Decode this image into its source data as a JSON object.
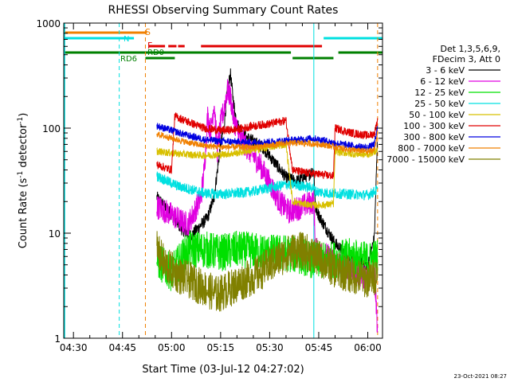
{
  "chart_data": {
    "type": "line",
    "title": "RHESSI Observing Summary Count Rates",
    "xlabel": "Start Time (03-Jul-12 04:27:02)",
    "ylabel_main": "Count Rate (s",
    "ylabel_sup1": "-1",
    "ylabel_mid": " detector",
    "ylabel_sup2": "-1",
    "ylabel_end": ")",
    "yscale": "log",
    "ylim": [
      1,
      1000
    ],
    "xlim": [
      "04:27:02",
      "06:04:30"
    ],
    "x_tick_labels": [
      "04:30",
      "04:45",
      "05:00",
      "05:15",
      "05:30",
      "05:45",
      "06:00"
    ],
    "y_tick_labels": [
      "1",
      "10",
      "100",
      "1000"
    ],
    "legend": {
      "placement": "right",
      "header": [
        "Det 1,3,5,6,9,",
        "FDecim 3, Att 0"
      ],
      "entries": [
        {
          "label": "3 - 6 keV",
          "color": "#000000"
        },
        {
          "label": "6 - 12 keV",
          "color": "#e000e0"
        },
        {
          "label": "12 - 25 keV",
          "color": "#00e000"
        },
        {
          "label": "25 - 50 keV",
          "color": "#00e0e0"
        },
        {
          "label": "50 - 100 keV",
          "color": "#d8c000"
        },
        {
          "label": "100 - 300 keV",
          "color": "#e00000"
        },
        {
          "label": "300 - 800 keV",
          "color": "#0000e0"
        },
        {
          "label": "800 - 7000 keV",
          "color": "#f08000"
        },
        {
          "label": "7000 - 15000 keV",
          "color": "#808000"
        }
      ]
    },
    "flag_labels": {
      "S": "S",
      "N": "N",
      "F": "F",
      "RD0": "RD0",
      "RD6": "RD6"
    },
    "flag_colors": {
      "S": "#f08000",
      "N": "#00e0e0",
      "F": "#e00000",
      "RD": "#008000"
    },
    "flags": {
      "S": [
        [
          "04:27:02",
          "04:52:30"
        ]
      ],
      "N": [
        [
          "04:27:02",
          "04:48:30"
        ],
        [
          "05:46:30",
          "06:04:30"
        ]
      ],
      "F": [
        [
          "04:53:00",
          "04:58:00"
        ],
        [
          "04:59:00",
          "05:01:30"
        ],
        [
          "05:02:00",
          "05:04:00"
        ],
        [
          "05:09:00",
          "05:46:00"
        ]
      ],
      "RD0": [
        [
          "04:27:02",
          "05:36:30"
        ],
        [
          "05:51:00",
          "06:04:30"
        ]
      ],
      "RD6": [
        [
          "04:52:00",
          "05:01:00"
        ],
        [
          "05:37:00",
          "05:49:30"
        ]
      ]
    },
    "vertical_lines": [
      {
        "time": "04:44:00",
        "color": "#00e0e0",
        "style": "dashed"
      },
      {
        "time": "04:52:00",
        "color": "#f08000",
        "style": "dashed"
      },
      {
        "time": "05:43:30",
        "color": "#00e0e0",
        "style": "solid"
      },
      {
        "time": "06:03:00",
        "color": "#f08000",
        "style": "dashed"
      }
    ],
    "data_start": "04:55:30",
    "data_end": "06:03:00",
    "series": [
      {
        "name": "3 - 6 keV",
        "color": "#000000",
        "noise": 0.06,
        "points": [
          [
            "04:55:30",
            22
          ],
          [
            "05:00:00",
            15
          ],
          [
            "05:03:00",
            11
          ],
          [
            "05:06:00",
            9.5
          ],
          [
            "05:09:00",
            12
          ],
          [
            "05:11:00",
            14
          ],
          [
            "05:13:00",
            22
          ],
          [
            "05:15:00",
            70
          ],
          [
            "05:16:00",
            100
          ],
          [
            "05:17:00",
            220
          ],
          [
            "05:18:00",
            330
          ],
          [
            "05:19:00",
            170
          ],
          [
            "05:20:00",
            110
          ],
          [
            "05:22:00",
            85
          ],
          [
            "05:25:00",
            75
          ],
          [
            "05:28:00",
            65
          ],
          [
            "05:32:00",
            45
          ],
          [
            "05:35:00",
            34
          ],
          [
            "05:38:00",
            31
          ],
          [
            "05:42:00",
            36
          ],
          [
            "05:43:30",
            40
          ],
          [
            "05:44:00",
            17
          ],
          [
            "05:46:00",
            13
          ],
          [
            "05:50:00",
            8
          ],
          [
            "05:55:00",
            5.5
          ],
          [
            "06:00:00",
            5
          ],
          [
            "06:02:00",
            9
          ],
          [
            "06:03:00",
            85
          ]
        ]
      },
      {
        "name": "6 - 12 keV",
        "color": "#e000e0",
        "noise": 0.12,
        "points": [
          [
            "04:55:30",
            18
          ],
          [
            "05:00:00",
            15
          ],
          [
            "05:03:00",
            13
          ],
          [
            "05:05:00",
            12
          ],
          [
            "05:07:00",
            16
          ],
          [
            "05:09:00",
            22
          ],
          [
            "05:10:00",
            40
          ],
          [
            "05:11:00",
            130
          ],
          [
            "05:12:00",
            90
          ],
          [
            "05:13:00",
            180
          ],
          [
            "05:14:00",
            60
          ],
          [
            "05:15:00",
            110
          ],
          [
            "05:16:00",
            150
          ],
          [
            "05:17:00",
            230
          ],
          [
            "05:18:00",
            200
          ],
          [
            "05:19:00",
            120
          ],
          [
            "05:21:00",
            80
          ],
          [
            "05:24:00",
            60
          ],
          [
            "05:27:00",
            45
          ],
          [
            "05:30:00",
            30
          ],
          [
            "05:33:00",
            20
          ],
          [
            "05:36:00",
            16
          ],
          [
            "05:40:00",
            18
          ],
          [
            "05:43:30",
            20
          ],
          [
            "05:44:00",
            7
          ],
          [
            "05:48:00",
            6
          ],
          [
            "05:52:00",
            5
          ],
          [
            "05:56:00",
            4.2
          ],
          [
            "06:00:00",
            3.8
          ],
          [
            "06:02:00",
            4.5
          ],
          [
            "06:03:00",
            1.2
          ]
        ]
      },
      {
        "name": "12 - 25 keV",
        "color": "#00e000",
        "noise": 0.18,
        "points": [
          [
            "04:55:30",
            5.5
          ],
          [
            "05:00:00",
            4.2
          ],
          [
            "05:05:00",
            7
          ],
          [
            "05:10:00",
            7
          ],
          [
            "05:15:00",
            6.5
          ],
          [
            "05:20:00",
            7
          ],
          [
            "05:25:00",
            6.8
          ],
          [
            "05:30:00",
            6.5
          ],
          [
            "05:35:00",
            6.5
          ],
          [
            "05:40:00",
            6
          ],
          [
            "05:43:30",
            5.5
          ],
          [
            "05:48:00",
            5.5
          ],
          [
            "05:55:00",
            6
          ],
          [
            "06:00:00",
            5.5
          ],
          [
            "06:03:00",
            6
          ]
        ]
      },
      {
        "name": "25 - 50 keV",
        "color": "#00e0e0",
        "noise": 0.05,
        "points": [
          [
            "04:55:30",
            35
          ],
          [
            "04:58:00",
            32
          ],
          [
            "05:02:00",
            28
          ],
          [
            "05:06:00",
            26
          ],
          [
            "05:10:00",
            24
          ],
          [
            "05:15:00",
            23.5
          ],
          [
            "05:20:00",
            24
          ],
          [
            "05:25:00",
            25
          ],
          [
            "05:30:00",
            27
          ],
          [
            "05:35:00",
            29
          ],
          [
            "05:38:00",
            29
          ],
          [
            "05:40:00",
            28
          ],
          [
            "05:43:30",
            27
          ],
          [
            "05:44:00",
            25
          ],
          [
            "05:48:00",
            24
          ],
          [
            "05:55:00",
            23.5
          ],
          [
            "06:00:00",
            23
          ],
          [
            "06:03:00",
            26
          ]
        ]
      },
      {
        "name": "50 - 100 keV",
        "color": "#d8c000",
        "noise": 0.035,
        "points": [
          [
            "04:55:30",
            60
          ],
          [
            "05:00:00",
            58
          ],
          [
            "05:05:00",
            56
          ],
          [
            "05:10:00",
            55
          ],
          [
            "05:15:00",
            56
          ],
          [
            "05:20:00",
            58
          ],
          [
            "05:25:00",
            62
          ],
          [
            "05:30:00",
            66
          ],
          [
            "05:35:00",
            70
          ],
          [
            "05:37:00",
            20
          ],
          [
            "05:40:00",
            19
          ],
          [
            "05:43:00",
            18.5
          ],
          [
            "05:46:00",
            18.5
          ],
          [
            "05:49:30",
            19
          ],
          [
            "05:50:00",
            60
          ],
          [
            "05:55:00",
            57
          ],
          [
            "06:00:00",
            56
          ],
          [
            "06:03:00",
            62
          ]
        ]
      },
      {
        "name": "100 - 300 keV",
        "color": "#e00000",
        "noise": 0.04,
        "points": [
          [
            "04:55:30",
            45
          ],
          [
            "04:58:00",
            42
          ],
          [
            "05:00:00",
            40
          ],
          [
            "05:01:00",
            130
          ],
          [
            "05:05:00",
            115
          ],
          [
            "05:10:00",
            100
          ],
          [
            "05:15:00",
            95
          ],
          [
            "05:20:00",
            97
          ],
          [
            "05:25:00",
            105
          ],
          [
            "05:30:00",
            110
          ],
          [
            "05:35:00",
            118
          ],
          [
            "05:37:00",
            40
          ],
          [
            "05:40:00",
            38
          ],
          [
            "05:43:00",
            37
          ],
          [
            "05:46:00",
            36
          ],
          [
            "05:49:30",
            35
          ],
          [
            "05:50:00",
            100
          ],
          [
            "05:55:00",
            90
          ],
          [
            "06:00:00",
            85
          ],
          [
            "06:02:00",
            88
          ],
          [
            "06:03:00",
            120
          ]
        ]
      },
      {
        "name": "300 - 800 keV",
        "color": "#0000e0",
        "noise": 0.035,
        "points": [
          [
            "04:55:30",
            105
          ],
          [
            "05:00:00",
            95
          ],
          [
            "05:05:00",
            85
          ],
          [
            "05:10:00",
            78
          ],
          [
            "05:15:00",
            75
          ],
          [
            "05:20:00",
            74
          ],
          [
            "05:25:00",
            73
          ],
          [
            "05:30:00",
            74
          ],
          [
            "05:35:00",
            76
          ],
          [
            "05:40:00",
            78
          ],
          [
            "05:43:00",
            80
          ],
          [
            "05:46:00",
            77
          ],
          [
            "05:50:00",
            72
          ],
          [
            "05:55:00",
            68
          ],
          [
            "06:00:00",
            65
          ],
          [
            "06:02:00",
            70
          ],
          [
            "06:03:00",
            100
          ]
        ]
      },
      {
        "name": "800 - 7000 keV",
        "color": "#f08000",
        "noise": 0.03,
        "points": [
          [
            "04:55:30",
            88
          ],
          [
            "05:00:00",
            80
          ],
          [
            "05:05:00",
            73
          ],
          [
            "05:10:00",
            68
          ],
          [
            "05:15:00",
            66
          ],
          [
            "05:20:00",
            66
          ],
          [
            "05:25:00",
            66
          ],
          [
            "05:30:00",
            68
          ],
          [
            "05:35:00",
            72
          ],
          [
            "05:40:00",
            72
          ],
          [
            "05:43:00",
            71
          ],
          [
            "05:46:00",
            70
          ],
          [
            "05:50:00",
            66
          ],
          [
            "05:55:00",
            62
          ],
          [
            "06:00:00",
            60
          ],
          [
            "06:02:00",
            62
          ],
          [
            "06:03:00",
            90
          ]
        ]
      },
      {
        "name": "7000 - 15000 keV",
        "color": "#808000",
        "noise": 0.18,
        "points": [
          [
            "04:55:30",
            7
          ],
          [
            "04:58:00",
            5
          ],
          [
            "05:02:00",
            4
          ],
          [
            "05:06:00",
            3.5
          ],
          [
            "05:10:00",
            3
          ],
          [
            "05:14:00",
            2.6
          ],
          [
            "05:18:00",
            3
          ],
          [
            "05:22:00",
            3.5
          ],
          [
            "05:26:00",
            4
          ],
          [
            "05:30:00",
            5
          ],
          [
            "05:34:00",
            6
          ],
          [
            "05:38:00",
            7
          ],
          [
            "05:42:00",
            6.5
          ],
          [
            "05:46:00",
            5.5
          ],
          [
            "05:50:00",
            4.5
          ],
          [
            "05:55:00",
            4
          ],
          [
            "06:00:00",
            3.6
          ],
          [
            "06:03:00",
            4
          ]
        ]
      }
    ]
  },
  "footer": {
    "date_stamp": "23-Oct-2021 08:27"
  }
}
